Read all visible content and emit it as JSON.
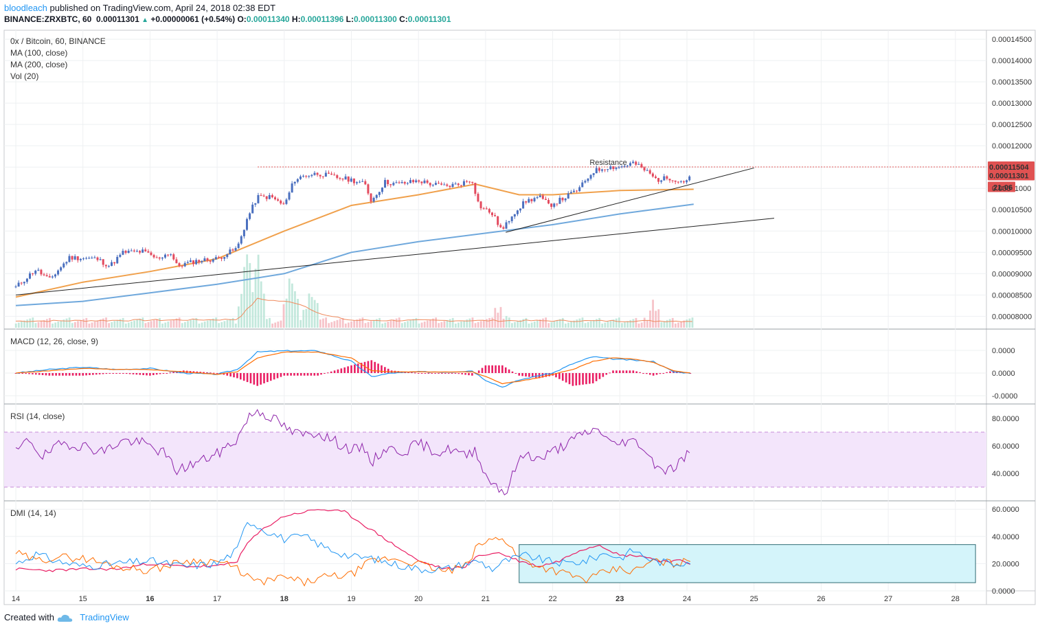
{
  "header": {
    "author": "bloodleach",
    "published": "published on TradingView.com, April 24, 2018 02:38 EDT",
    "symbol_interval": "BINANCE:ZRXBTC, 60",
    "last_price": "0.00011301",
    "change": "+0.00000061 (+0.54%)",
    "open_label": "O:",
    "open": "0.00011340",
    "high_label": "H:",
    "high": "0.00011396",
    "low_label": "L:",
    "low": "0.00011300",
    "close_label": "C:",
    "close": "0.00011301"
  },
  "footer": {
    "created_with": "Created with",
    "brand": "TradingView"
  },
  "colors": {
    "up": "#4a6fbf",
    "down": "#e34a5e",
    "ma100": "#f0a04b",
    "ma200": "#6fa8dc",
    "macd": "#2196f3",
    "signal": "#ff6d00",
    "hist": "#e91e63",
    "rsi": "#8e24aa",
    "rsi_band": "#f3e5fb",
    "dmi_plus": "#2196f3",
    "dmi_minus": "#ff6d00",
    "adx": "#e91e63",
    "box": "#d4f4fa"
  },
  "chart_data": [
    {
      "type": "candlestick",
      "title": "0x / Bitcoin, 60, BINANCE",
      "legend": [
        "MA (100, close)",
        "MA (200, close)",
        "Vol (20)"
      ],
      "x_ticks": [
        "14",
        "15",
        "16",
        "17",
        "18",
        "19",
        "20",
        "21",
        "22",
        "23",
        "24",
        "25",
        "26",
        "27",
        "28"
      ],
      "y_ticks": [
        "0.00014500",
        "0.00014000",
        "0.00013500",
        "0.00013000",
        "0.00012500",
        "0.00012000",
        "0.00011500",
        "0.00011000",
        "0.00010500",
        "0.00010000",
        "0.00009500",
        "0.00009000",
        "0.00008500",
        "0.00008000"
      ],
      "ylim": [
        7.78e-05,
        0.0001463
      ],
      "price_path": [
        [
          14.0,
          8.68e-05
        ],
        [
          14.3,
          9.1e-05
        ],
        [
          14.5,
          8.85e-05
        ],
        [
          14.8,
          9.38e-05
        ],
        [
          15.2,
          9.35e-05
        ],
        [
          15.4,
          9.18e-05
        ],
        [
          15.6,
          9.5e-05
        ],
        [
          15.9,
          9.52e-05
        ],
        [
          16.1,
          9.35e-05
        ],
        [
          16.3,
          9.5e-05
        ],
        [
          16.4,
          9.18e-05
        ],
        [
          16.7,
          9.3e-05
        ],
        [
          17.0,
          9.35e-05
        ],
        [
          17.3,
          9.6e-05
        ],
        [
          17.45,
          0.000103
        ],
        [
          17.6,
          0.000108
        ],
        [
          17.8,
          0.000108
        ],
        [
          18.0,
          0.000106
        ],
        [
          18.15,
          0.000112
        ],
        [
          18.3,
          0.000113
        ],
        [
          18.5,
          0.0001135
        ],
        [
          18.8,
          0.0001125
        ],
        [
          19.0,
          0.000112
        ],
        [
          19.2,
          0.000111
        ],
        [
          19.3,
          0.000107
        ],
        [
          19.5,
          0.0001115
        ],
        [
          19.7,
          0.000111
        ],
        [
          20.0,
          0.0001118
        ],
        [
          20.2,
          0.000111
        ],
        [
          20.4,
          0.0001105
        ],
        [
          20.6,
          0.000111
        ],
        [
          20.8,
          0.000112
        ],
        [
          20.9,
          0.000106
        ],
        [
          21.1,
          0.000104
        ],
        [
          21.25,
          0.0001
        ],
        [
          21.4,
          0.000104
        ],
        [
          21.6,
          0.000107
        ],
        [
          21.8,
          0.000108
        ],
        [
          21.95,
          0.000106
        ],
        [
          22.2,
          0.000108
        ],
        [
          22.4,
          0.00011
        ],
        [
          22.6,
          0.000114
        ],
        [
          22.8,
          0.000115
        ],
        [
          23.0,
          0.000115
        ],
        [
          23.2,
          0.000116
        ],
        [
          23.4,
          0.000114
        ],
        [
          23.55,
          0.000112
        ],
        [
          23.75,
          0.0001125
        ],
        [
          23.95,
          0.0001115
        ],
        [
          24.05,
          0.000113
        ]
      ],
      "volume_peaks": [
        [
          17.45,
          0.9
        ],
        [
          17.6,
          0.8
        ],
        [
          18.1,
          0.6
        ],
        [
          18.4,
          0.4
        ],
        [
          21.2,
          0.15
        ],
        [
          23.5,
          0.2
        ]
      ],
      "ma100": [
        [
          14.0,
          8.45e-05
        ],
        [
          15.0,
          8.8e-05
        ],
        [
          16.0,
          9.05e-05
        ],
        [
          17.0,
          9.35e-05
        ],
        [
          18.0,
          0.0001
        ],
        [
          19.0,
          0.000106
        ],
        [
          20.0,
          0.0001085
        ],
        [
          20.85,
          0.000111
        ],
        [
          21.5,
          0.0001085
        ],
        [
          22.0,
          0.0001085
        ],
        [
          22.5,
          0.000109
        ],
        [
          23.0,
          0.0001095
        ],
        [
          24.1,
          0.0001098
        ]
      ],
      "ma200": [
        [
          14.0,
          8.25e-05
        ],
        [
          15.0,
          8.35e-05
        ],
        [
          16.0,
          8.55e-05
        ],
        [
          17.0,
          8.75e-05
        ],
        [
          18.0,
          9e-05
        ],
        [
          19.0,
          9.5e-05
        ],
        [
          20.0,
          9.75e-05
        ],
        [
          21.0,
          9.95e-05
        ],
        [
          22.0,
          0.0001015
        ],
        [
          23.0,
          0.000104
        ],
        [
          24.1,
          0.0001063
        ]
      ],
      "trendline_long": [
        [
          14.0,
          8.5e-05
        ],
        [
          25.3,
          0.000103
        ]
      ],
      "trendline_short": [
        [
          21.3,
          9.97e-05
        ],
        [
          25.0,
          0.0001148
        ]
      ],
      "resistance": 0.00011504,
      "resistance_label": "Resistance",
      "price_tags": [
        "0.00011504",
        "0.00011301",
        "21:06"
      ],
      "partial_tick_label": "0.000"
    },
    {
      "type": "line",
      "title": "MACD (12, 26, close, 9)",
      "y_ticks": [
        "0.0000",
        "0.0000",
        "-0.0000"
      ],
      "ylim": [
        -1.0,
        1.0
      ],
      "macd": [
        [
          14.0,
          0.0
        ],
        [
          14.5,
          0.15
        ],
        [
          15.0,
          0.25
        ],
        [
          15.5,
          0.15
        ],
        [
          16.0,
          0.2
        ],
        [
          16.5,
          0.0
        ],
        [
          17.0,
          -0.05
        ],
        [
          17.3,
          0.15
        ],
        [
          17.6,
          0.9
        ],
        [
          18.0,
          0.95
        ],
        [
          18.5,
          0.95
        ],
        [
          19.0,
          0.5
        ],
        [
          19.3,
          -0.15
        ],
        [
          19.6,
          0.0
        ],
        [
          20.0,
          0.05
        ],
        [
          20.5,
          0.05
        ],
        [
          20.8,
          0.1
        ],
        [
          21.0,
          -0.3
        ],
        [
          21.25,
          -0.6
        ],
        [
          21.5,
          -0.3
        ],
        [
          21.8,
          -0.1
        ],
        [
          22.0,
          0.0
        ],
        [
          22.3,
          0.4
        ],
        [
          22.6,
          0.7
        ],
        [
          22.9,
          0.6
        ],
        [
          23.2,
          0.55
        ],
        [
          23.5,
          0.5
        ],
        [
          23.8,
          0.05
        ],
        [
          24.05,
          0.0
        ]
      ],
      "signal": [
        [
          14.0,
          0.0
        ],
        [
          14.5,
          0.1
        ],
        [
          15.0,
          0.2
        ],
        [
          15.5,
          0.15
        ],
        [
          16.0,
          0.15
        ],
        [
          16.5,
          0.05
        ],
        [
          17.0,
          -0.05
        ],
        [
          17.3,
          0.05
        ],
        [
          17.6,
          0.65
        ],
        [
          18.0,
          0.9
        ],
        [
          18.5,
          0.9
        ],
        [
          19.0,
          0.65
        ],
        [
          19.3,
          0.1
        ],
        [
          19.6,
          0.05
        ],
        [
          20.0,
          0.05
        ],
        [
          20.5,
          0.05
        ],
        [
          20.8,
          0.05
        ],
        [
          21.0,
          -0.15
        ],
        [
          21.25,
          -0.45
        ],
        [
          21.5,
          -0.35
        ],
        [
          21.8,
          -0.2
        ],
        [
          22.0,
          -0.05
        ],
        [
          22.3,
          0.15
        ],
        [
          22.6,
          0.5
        ],
        [
          22.9,
          0.65
        ],
        [
          23.2,
          0.6
        ],
        [
          23.5,
          0.45
        ],
        [
          23.8,
          0.1
        ],
        [
          24.05,
          0.0
        ]
      ]
    },
    {
      "type": "line",
      "title": "RSI (14, close)",
      "y_ticks": [
        "80.0000",
        "60.0000",
        "40.0000"
      ],
      "ylim": [
        20,
        88
      ],
      "bands": [
        30,
        70
      ],
      "values": [
        [
          14.0,
          55
        ],
        [
          14.2,
          65
        ],
        [
          14.4,
          52
        ],
        [
          14.7,
          62
        ],
        [
          15.0,
          60
        ],
        [
          15.3,
          56
        ],
        [
          15.6,
          64
        ],
        [
          15.9,
          62
        ],
        [
          16.2,
          55
        ],
        [
          16.4,
          42
        ],
        [
          16.7,
          48
        ],
        [
          17.0,
          54
        ],
        [
          17.3,
          65
        ],
        [
          17.45,
          80
        ],
        [
          17.6,
          86
        ],
        [
          17.9,
          78
        ],
        [
          18.1,
          70
        ],
        [
          18.3,
          68
        ],
        [
          18.5,
          70
        ],
        [
          18.8,
          62
        ],
        [
          19.0,
          57
        ],
        [
          19.2,
          58
        ],
        [
          19.3,
          48
        ],
        [
          19.5,
          58
        ],
        [
          19.8,
          56
        ],
        [
          20.0,
          62
        ],
        [
          20.3,
          55
        ],
        [
          20.5,
          58
        ],
        [
          20.7,
          52
        ],
        [
          20.85,
          58
        ],
        [
          21.0,
          38
        ],
        [
          21.2,
          30
        ],
        [
          21.3,
          25
        ],
        [
          21.45,
          45
        ],
        [
          21.6,
          55
        ],
        [
          21.8,
          50
        ],
        [
          22.0,
          56
        ],
        [
          22.3,
          64
        ],
        [
          22.5,
          70
        ],
        [
          22.7,
          72
        ],
        [
          22.9,
          60
        ],
        [
          23.1,
          64
        ],
        [
          23.3,
          62
        ],
        [
          23.5,
          48
        ],
        [
          23.7,
          42
        ],
        [
          23.85,
          46
        ],
        [
          24.0,
          54
        ],
        [
          24.05,
          55
        ]
      ]
    },
    {
      "type": "line",
      "title": "DMI (14, 14)",
      "y_ticks": [
        "60.0000",
        "40.0000",
        "20.0000",
        "0.0000"
      ],
      "ylim": [
        0,
        62
      ],
      "plus_di": [
        [
          14.0,
          20
        ],
        [
          14.3,
          27
        ],
        [
          14.6,
          22
        ],
        [
          15.0,
          18
        ],
        [
          15.5,
          20
        ],
        [
          16.0,
          22
        ],
        [
          16.5,
          18
        ],
        [
          17.0,
          20
        ],
        [
          17.3,
          30
        ],
        [
          17.45,
          52
        ],
        [
          17.7,
          45
        ],
        [
          18.0,
          38
        ],
        [
          18.3,
          40
        ],
        [
          18.6,
          32
        ],
        [
          19.0,
          25
        ],
        [
          19.3,
          24
        ],
        [
          19.6,
          20
        ],
        [
          20.0,
          16
        ],
        [
          20.4,
          16
        ],
        [
          20.7,
          20
        ],
        [
          20.9,
          22
        ],
        [
          21.1,
          16
        ],
        [
          21.3,
          22
        ],
        [
          21.6,
          26
        ],
        [
          21.9,
          22
        ],
        [
          22.2,
          20
        ],
        [
          22.5,
          22
        ],
        [
          22.8,
          28
        ],
        [
          23.0,
          24
        ],
        [
          23.2,
          30
        ],
        [
          23.5,
          22
        ],
        [
          23.8,
          20
        ],
        [
          24.05,
          22
        ]
      ],
      "minus_di": [
        [
          14.0,
          28
        ],
        [
          14.3,
          22
        ],
        [
          14.6,
          25
        ],
        [
          15.0,
          24
        ],
        [
          15.5,
          18
        ],
        [
          16.0,
          15
        ],
        [
          16.5,
          22
        ],
        [
          17.0,
          22
        ],
        [
          17.3,
          16
        ],
        [
          17.6,
          6
        ],
        [
          18.0,
          10
        ],
        [
          18.3,
          6
        ],
        [
          18.6,
          10
        ],
        [
          19.0,
          12
        ],
        [
          19.3,
          22
        ],
        [
          19.6,
          24
        ],
        [
          20.0,
          20
        ],
        [
          20.4,
          14
        ],
        [
          20.7,
          18
        ],
        [
          20.9,
          34
        ],
        [
          21.25,
          40
        ],
        [
          21.5,
          24
        ],
        [
          21.8,
          18
        ],
        [
          22.1,
          14
        ],
        [
          22.5,
          8
        ],
        [
          22.8,
          14
        ],
        [
          23.0,
          16
        ],
        [
          23.2,
          14
        ],
        [
          23.5,
          22
        ],
        [
          23.8,
          20
        ],
        [
          24.05,
          22
        ]
      ],
      "adx": [
        [
          14.0,
          16
        ],
        [
          14.5,
          15
        ],
        [
          15.0,
          16
        ],
        [
          15.5,
          16
        ],
        [
          16.0,
          20
        ],
        [
          16.5,
          18
        ],
        [
          17.0,
          18
        ],
        [
          17.3,
          22
        ],
        [
          17.45,
          35
        ],
        [
          17.7,
          46
        ],
        [
          18.0,
          55
        ],
        [
          18.5,
          60
        ],
        [
          18.9,
          58
        ],
        [
          19.2,
          48
        ],
        [
          19.6,
          35
        ],
        [
          20.0,
          22
        ],
        [
          20.4,
          16
        ],
        [
          20.7,
          18
        ],
        [
          20.9,
          26
        ],
        [
          21.2,
          28
        ],
        [
          21.5,
          22
        ],
        [
          21.8,
          18
        ],
        [
          22.1,
          22
        ],
        [
          22.4,
          30
        ],
        [
          22.7,
          34
        ],
        [
          23.0,
          26
        ],
        [
          23.3,
          26
        ],
        [
          23.6,
          22
        ],
        [
          23.9,
          22
        ],
        [
          24.05,
          20
        ]
      ],
      "box_range_days": [
        21.5,
        28.3
      ],
      "box_range_values": [
        6,
        34
      ]
    }
  ]
}
